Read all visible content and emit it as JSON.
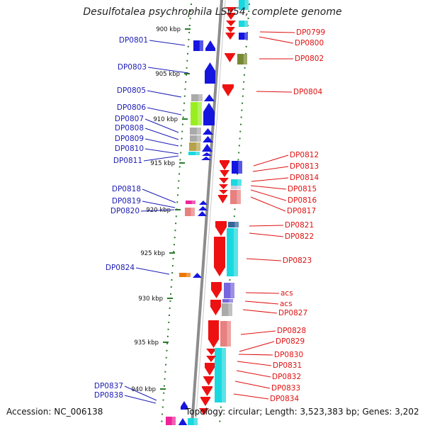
{
  "title": "Desulfotalea psychrophila LSv54, complete genome",
  "footer": {
    "accession": "Accession: NC_006138",
    "info": "Topology: circular; Length: 3,523,383 bp; Genes: 3,202"
  },
  "colors": {
    "forward_label": "#1c1cb4",
    "reverse_label": "#e01010",
    "backbone": "#8c8c8c",
    "tick": "#2a7a2a"
  },
  "kbp_ticks": [
    "900 kbp",
    "905 kbp",
    "910 kbp",
    "915 kbp",
    "920 kbp",
    "925 kbp",
    "930 kbp",
    "935 kbp",
    "940 kbp"
  ],
  "forward_genes": [
    "DP0801",
    "DP0803",
    "DP0805",
    "DP0806",
    "DP0807",
    "DP0808",
    "DP0809",
    "DP0810",
    "DP0811",
    "DP0818",
    "DP0819",
    "DP0820",
    "DP0824",
    "DP0837",
    "DP0838"
  ],
  "reverse_genes": [
    "DP0799",
    "DP0800",
    "DP0802",
    "DP0804",
    "DP0812",
    "DP0813",
    "DP0814",
    "DP0815",
    "DP0816",
    "DP0817",
    "DP0821",
    "DP0822",
    "DP0823",
    "acs",
    "acs",
    "DP0827",
    "DP0828",
    "DP0829",
    "DP0830",
    "DP0831",
    "DP0832",
    "DP0833",
    "DP0834"
  ]
}
